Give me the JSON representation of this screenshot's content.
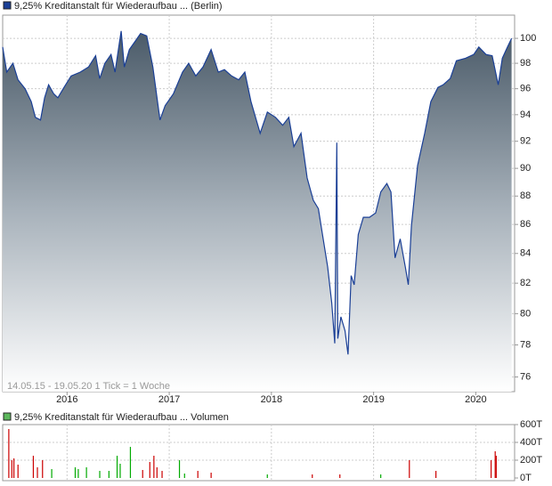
{
  "chart_data": [
    {
      "type": "area",
      "legend": "9,25% Kreditanstalt für Wiederaufbau ... (Berlin)",
      "note": "14.05.15 - 19.05.20   1 Tick = 1 Woche",
      "color": "#1a3f96",
      "log_scale": true,
      "grid": true,
      "x": [
        2015.37,
        2015.41,
        2015.47,
        2015.52,
        2015.59,
        2015.65,
        2015.69,
        2015.74,
        2015.78,
        2015.82,
        2015.87,
        2015.91,
        2015.97,
        2016.04,
        2016.13,
        2016.21,
        2016.28,
        2016.32,
        2016.37,
        2016.43,
        2016.47,
        2016.53,
        2016.56,
        2016.61,
        2016.67,
        2016.72,
        2016.78,
        2016.84,
        2016.91,
        2016.96,
        2017.04,
        2017.13,
        2017.19,
        2017.26,
        2017.33,
        2017.41,
        2017.48,
        2017.54,
        2017.61,
        2017.68,
        2017.74,
        2017.8,
        2017.89,
        2017.96,
        2018.04,
        2018.11,
        2018.17,
        2018.22,
        2018.29,
        2018.35,
        2018.41,
        2018.46,
        2018.5,
        2018.55,
        2018.59,
        2018.62,
        2018.64,
        2018.65,
        2018.68,
        2018.72,
        2018.75,
        2018.78,
        2018.81,
        2018.85,
        2018.9,
        2018.96,
        2019.02,
        2019.07,
        2019.13,
        2019.17,
        2019.21,
        2019.26,
        2019.31,
        2019.34,
        2019.37,
        2019.43,
        2019.5,
        2019.56,
        2019.63,
        2019.68,
        2019.75,
        2019.81,
        2019.9,
        2019.98,
        2020.03,
        2020.1,
        2020.16,
        2020.22,
        2020.26,
        2020.31,
        2020.35
      ],
      "values": [
        99.3,
        97.3,
        98,
        96.7,
        96,
        95,
        93.8,
        93.6,
        95.3,
        96.3,
        95.6,
        95.3,
        96.1,
        97,
        97.3,
        97.7,
        98.6,
        96.8,
        98,
        98.7,
        97.3,
        100.6,
        97.7,
        99.1,
        99.8,
        100.4,
        100.2,
        97.7,
        93.6,
        94.7,
        95.6,
        97.3,
        98,
        97,
        97.7,
        99.1,
        97.3,
        97.5,
        97,
        96.7,
        97.3,
        95,
        92.6,
        94.2,
        93.8,
        93.2,
        93.8,
        91.6,
        92.6,
        89.3,
        87.7,
        87.1,
        85.3,
        83.1,
        80.7,
        78.1,
        91.9,
        78.4,
        79.8,
        78.9,
        77.4,
        82.5,
        81.9,
        85.3,
        86.5,
        86.5,
        86.8,
        88.3,
        88.9,
        88.3,
        83.7,
        85,
        83.1,
        81.9,
        85.9,
        90.2,
        92.6,
        95,
        96.1,
        96.3,
        96.8,
        98.2,
        98.4,
        98.7,
        99.3,
        98.7,
        98.6,
        96.3,
        98.4,
        99.3,
        100
      ],
      "xlim": [
        2015.37,
        2020.38
      ],
      "xticks": [
        2016,
        2017,
        2018,
        2019,
        2020
      ],
      "ylim": [
        75.1,
        101.9
      ],
      "yticks": [
        76,
        78,
        80,
        82,
        84,
        86,
        88,
        90,
        92,
        94,
        96,
        98,
        100
      ]
    },
    {
      "type": "bar",
      "legend": "9,25% Kreditanstalt für Wiederaufbau ... Volumen",
      "color": "#5cb85c",
      "grid": true,
      "x": [
        2015.43,
        2015.46,
        2015.48,
        2015.52,
        2015.67,
        2015.71,
        2015.76,
        2015.85,
        2016.08,
        2016.11,
        2016.19,
        2016.32,
        2016.41,
        2016.49,
        2016.52,
        2016.62,
        2016.74,
        2016.81,
        2016.85,
        2016.88,
        2016.93,
        2017.1,
        2017.15,
        2017.28,
        2017.41,
        2017.96,
        2018.4,
        2018.67,
        2019.07,
        2019.35,
        2019.61,
        2020.15,
        2020.19,
        2020.2
      ],
      "values": [
        550000,
        200000,
        220000,
        150000,
        250000,
        120000,
        200000,
        100000,
        120000,
        100000,
        120000,
        80000,
        80000,
        250000,
        160000,
        350000,
        90000,
        180000,
        250000,
        120000,
        80000,
        200000,
        50000,
        80000,
        60000,
        40000,
        40000,
        40000,
        40000,
        200000,
        80000,
        200000,
        300000,
        250000
      ],
      "colors": [
        "#cc0000",
        "#cc0000",
        "#cc0000",
        "#cc0000",
        "#cc0000",
        "#cc0000",
        "#cc0000",
        "#00aa00",
        "#00aa00",
        "#00aa00",
        "#00aa00",
        "#00aa00",
        "#00aa00",
        "#00aa00",
        "#00aa00",
        "#00aa00",
        "#cc0000",
        "#cc0000",
        "#cc0000",
        "#cc0000",
        "#cc0000",
        "#00aa00",
        "#00aa00",
        "#cc0000",
        "#cc0000",
        "#00aa00",
        "#cc0000",
        "#cc0000",
        "#00aa00",
        "#cc0000",
        "#cc0000",
        "#cc0000",
        "#cc0000",
        "#cc0000"
      ],
      "xlim": [
        2015.37,
        2020.38
      ],
      "xticks": [
        2016,
        2017,
        2018,
        2019,
        2020
      ],
      "ylim": [
        0,
        600000
      ],
      "yticks": [
        {
          "value": 0,
          "label": "0T"
        },
        {
          "value": 200000,
          "label": "200T"
        },
        {
          "value": 400000,
          "label": "400T"
        },
        {
          "value": 600000,
          "label": "600T"
        }
      ]
    }
  ]
}
